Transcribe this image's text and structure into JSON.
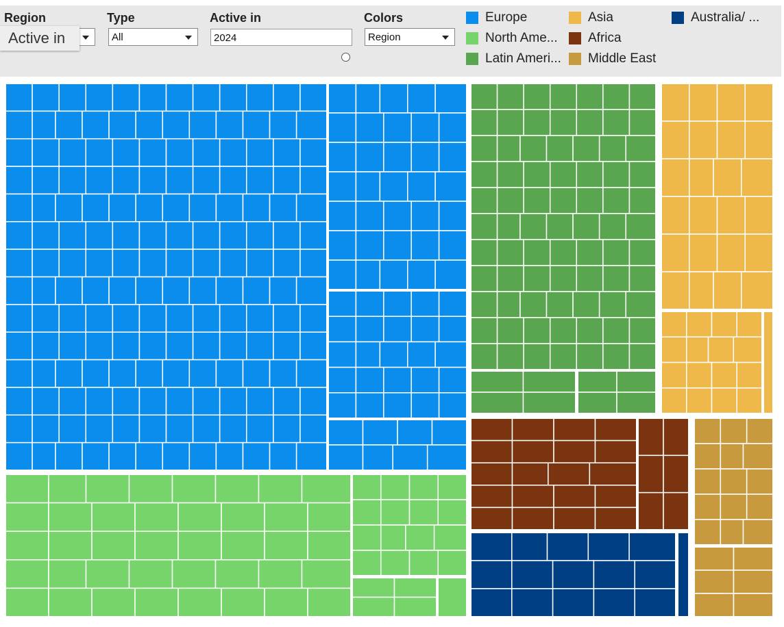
{
  "filters": {
    "region": {
      "label": "Region",
      "tooltip": "Active in"
    },
    "type": {
      "label": "Type",
      "value": "All"
    },
    "active_in": {
      "label": "Active in",
      "value": "2024"
    },
    "colors": {
      "label": "Colors",
      "value": "Region"
    }
  },
  "legend": [
    {
      "name": "Europe",
      "color": "#0a8ded"
    },
    {
      "name": "North Ame...",
      "color": "#77d46b"
    },
    {
      "name": "Latin Ameri...",
      "color": "#5aa550"
    },
    {
      "name": "Asia",
      "color": "#eeb84b"
    },
    {
      "name": "Africa",
      "color": "#7a3510"
    },
    {
      "name": "Middle East",
      "color": "#c79a40"
    },
    {
      "name": "Australia/ ...",
      "color": "#003f84"
    }
  ]
}
